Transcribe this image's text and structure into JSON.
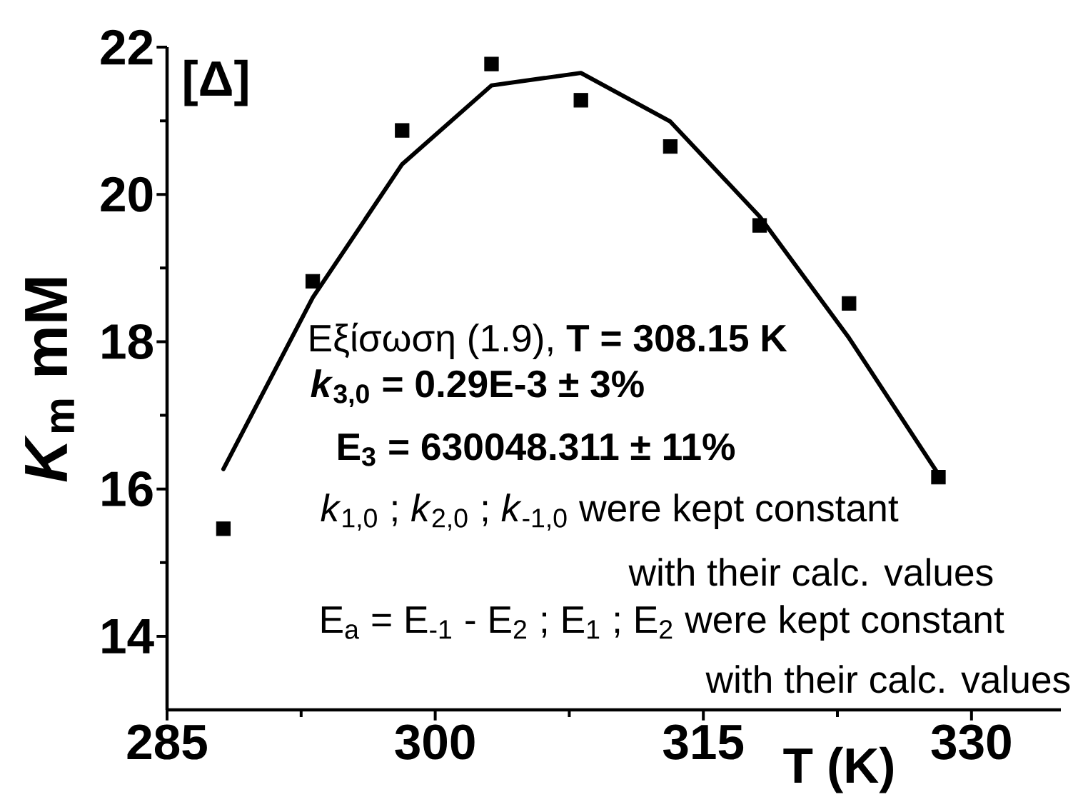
{
  "chart_data": {
    "type": "scatter",
    "xlabel": "T (K)",
    "ylabel": "*K*$_{m}$ mM",
    "annotations": [
      "[Δ]",
      "Εξίσωση (1.9), **T = 308.15 K**",
      "*k*$_{3,0}$ = 0.29E-3 ± 3%",
      "E$_{3}$ = 630048.311 ± 11%",
      "*k*$_{1,0}$ ; *k*$_{2,0}$ ; *k*$_{-1,0}$ were kept constant",
      "with their calc. values",
      "E$_{a}$ = E$_{-1}$ - E$_{2}$ ; E$_{1}$ ; E$_{2}$ were kept constant",
      "with their calc. values"
    ],
    "x": [
      288.15,
      293.15,
      298.15,
      303.15,
      308.15,
      313.15,
      318.15,
      323.15,
      328.15
    ],
    "series": [
      {
        "color": "#000000",
        "marker": "square",
        "values": [
          15.46,
          18.82,
          20.87,
          21.77,
          21.28,
          20.65,
          19.58,
          18.52,
          16.16
        ]
      },
      {
        "type": "line",
        "color": "#000000",
        "marker": "none",
        "line_style": "solid",
        "x": [
          288.15,
          293.15,
          298.15,
          303.15,
          308.15,
          313.15,
          318.15,
          323.15,
          328.15
        ],
        "values": [
          16.27,
          18.6,
          20.41,
          21.48,
          21.65,
          20.99,
          19.7,
          18.05,
          16.2
        ]
      }
    ],
    "xlim": [
      285,
      335
    ],
    "xticks": [
      285,
      {
        "value": 292.5,
        "label": null
      },
      300,
      {
        "value": 307.5,
        "label": null
      },
      315,
      {
        "value": 322.5,
        "label": null
      },
      330
    ],
    "ylim": [
      13,
      22
    ],
    "yticks": [
      14,
      {
        "value": 15,
        "label": null
      },
      16,
      {
        "value": 17,
        "label": null
      },
      18,
      {
        "value": 19,
        "label": null
      },
      20,
      {
        "value": 21,
        "label": null
      },
      22
    ]
  }
}
